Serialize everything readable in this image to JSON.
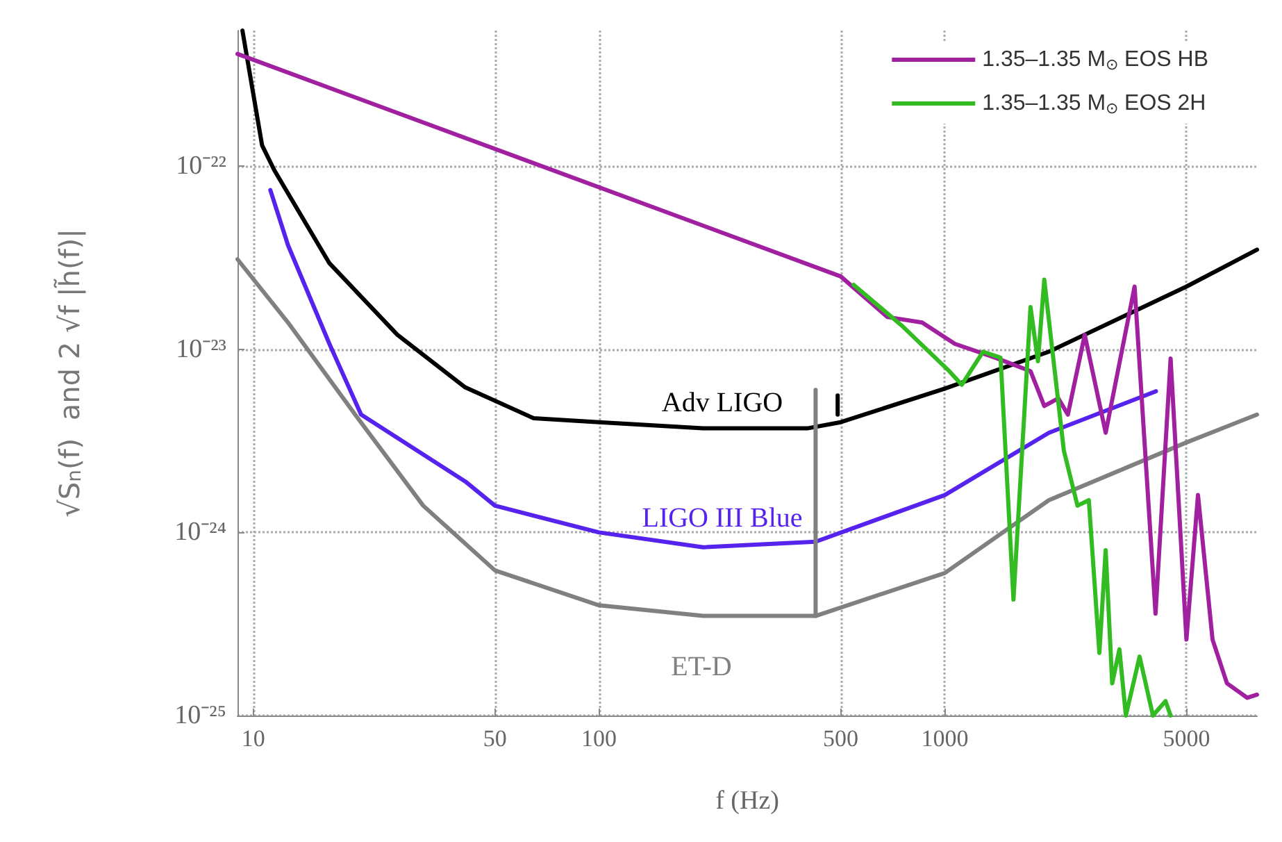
{
  "chart_data": {
    "type": "line",
    "xlabel": "f (Hz)",
    "ylabel": "√S$_{n}$(f)  and 2 √f |h̃(f)|",
    "log": "xy",
    "xlim": [
      9,
      8000
    ],
    "xticks": [
      10,
      50,
      100,
      500,
      1000,
      5000
    ],
    "ylim": [
      1e-25,
      5.5e-22
    ],
    "yticks": [
      {
        "value": 1e-25,
        "label": "10⁻²⁵"
      },
      {
        "value": 1e-24,
        "label": "10⁻²⁴"
      },
      {
        "value": 1e-23,
        "label": "10⁻²³"
      },
      {
        "value": 1e-22,
        "label": "10⁻²²"
      }
    ],
    "grid": true,
    "legend": "top right",
    "line_style": "solid",
    "series": [
      {
        "color": "#000000",
        "x": [
          9.3,
          10.6,
          11.5,
          16.6,
          26.1,
          41,
          64.7,
          100,
          200,
          400,
          500,
          1000,
          2000,
          5000,
          8000
        ],
        "values": [
          5.5e-22,
          1.3e-22,
          9.5e-23,
          2.95e-23,
          1.2e-23,
          6.2e-24,
          4.2e-24,
          4e-24,
          3.7e-24,
          3.7e-24,
          4e-24,
          6.1e-24,
          9.7e-24,
          2.2e-23,
          3.5e-23
        ]
      },
      {
        "color": "#5522ee",
        "x": [
          11.2,
          12.6,
          16.6,
          20.5,
          41,
          50,
          100,
          200,
          423,
          1000,
          2000,
          4080
        ],
        "values": [
          7.4e-23,
          3.7e-23,
          1.07e-23,
          4.4e-24,
          1.9e-24,
          1.4e-24,
          1e-24,
          8.3e-25,
          8.9e-25,
          1.6e-24,
          3.5e-24,
          5.9e-24
        ]
      },
      {
        "color": "#808080",
        "x": [
          9,
          12.6,
          19.7,
          31,
          50,
          100,
          200,
          423,
          1000,
          2000,
          5000,
          8000
        ],
        "values": [
          3.1e-23,
          1.4e-23,
          4.4e-24,
          1.4e-24,
          6.2e-25,
          4e-25,
          3.5e-25,
          3.5e-25,
          6e-25,
          1.5e-24,
          3.1e-24,
          4.4e-24
        ]
      },
      {
        "color": "#808080",
        "x": [
          423,
          423
        ],
        "values": [
          3.5e-25,
          6e-24
        ]
      },
      {
        "color": "#000000",
        "x": [
          490,
          490
        ],
        "values": [
          4.4e-24,
          5.6e-24
        ]
      },
      {
        "name": "1.35–1.35 M$_{⊙}$ EOS HB",
        "color": "#a020a0",
        "x": [
          9,
          500,
          683,
          860,
          1070,
          1400,
          1770,
          1940,
          2130,
          2270,
          2540,
          2920,
          3540,
          4070,
          4500,
          5000,
          5400,
          5950,
          6550,
          7500,
          8000
        ],
        "values": [
          4.1e-22,
          2.5e-23,
          1.5e-23,
          1.4e-23,
          1.07e-23,
          9e-24,
          7.6e-24,
          4.9e-24,
          5.4e-24,
          4.4e-24,
          1.2e-23,
          3.5e-24,
          2.2e-23,
          3.6e-25,
          8.9e-24,
          2.6e-25,
          1.6e-24,
          2.6e-25,
          1.5e-25,
          1.25e-25,
          1.3e-25
        ]
      },
      {
        "name": "1.35–1.35 M$_{⊙}$ EOS 2H",
        "color": "#33bb22",
        "x": [
          545,
          750,
          1030,
          1120,
          1290,
          1450,
          1580,
          1770,
          1860,
          1940,
          2080,
          2210,
          2420,
          2610,
          2800,
          2920,
          3050,
          3200,
          3340,
          3660,
          4000,
          4350,
          4500
        ],
        "values": [
          2.25e-23,
          1.35e-23,
          7.6e-24,
          6.4e-24,
          9.7e-24,
          9e-24,
          4.3e-25,
          1.7e-23,
          8.6e-24,
          2.4e-23,
          7.6e-24,
          2.8e-24,
          1.4e-24,
          1.5e-24,
          2.2e-25,
          8e-25,
          1.5e-25,
          2.3e-25,
          1e-25,
          2.1e-25,
          1e-25,
          1.2e-25,
          1e-25
        ]
      }
    ],
    "annotations": [
      "Adv LIGO",
      "LIGO III Blue",
      "ET-D"
    ]
  }
}
